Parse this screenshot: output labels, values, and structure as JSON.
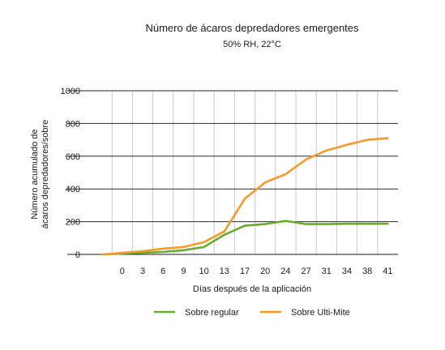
{
  "chart_data": {
    "type": "line",
    "title": "Número de ácaros depredadores emergentes",
    "subtitle": "50% RH, 22°C",
    "xlabel": "Días después de la aplicación",
    "ylabel_lines": [
      "Número acumulado de",
      "ácaros depredadores/sobre"
    ],
    "categories": [
      "",
      "0",
      "3",
      "6",
      "9",
      "10",
      "13",
      "17",
      "20",
      "24",
      "27",
      "31",
      "34",
      "38",
      "41"
    ],
    "ylim": [
      0,
      1100
    ],
    "yticks": [
      0,
      200,
      400,
      600,
      800,
      1000
    ],
    "grid": {
      "horizontal": true,
      "vertical": true
    },
    "legend_position": "bottom",
    "series": [
      {
        "name": "Sobre regular",
        "color": "#6aaa2e",
        "values": [
          0,
          5,
          10,
          15,
          25,
          45,
          120,
          175,
          185,
          205,
          185,
          185,
          187,
          187,
          187
        ]
      },
      {
        "name": "Sobre Ulti-Mite",
        "color": "#f39a2b",
        "values": [
          0,
          10,
          20,
          35,
          45,
          75,
          140,
          340,
          440,
          490,
          580,
          635,
          670,
          700,
          710
        ]
      }
    ]
  }
}
